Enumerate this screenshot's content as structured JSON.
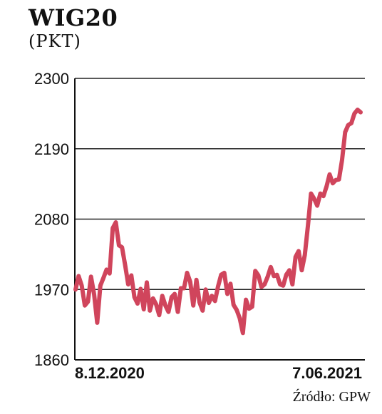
{
  "chart_data": {
    "type": "line",
    "title": "WIG20",
    "subtitle": "(PKT)",
    "source": "Źródło: GPW",
    "ylim": [
      1860,
      2300
    ],
    "yticks": [
      2300,
      2190,
      2080,
      1970,
      1860
    ],
    "xtick_labels": [
      "8.12.2020",
      "7.06.2021"
    ],
    "grid": "horizontal",
    "line_color": "#d0455c",
    "series": [
      {
        "values": [
          1970,
          1991,
          1976,
          1945,
          1951,
          1990,
          1962,
          1918,
          1976,
          1988,
          2001,
          1995,
          2066,
          2075,
          2039,
          2036,
          2008,
          1978,
          1992,
          1958,
          1948,
          1971,
          1939,
          1981,
          1937,
          1956,
          1947,
          1930,
          1960,
          1945,
          1935,
          1958,
          1963,
          1935,
          1972,
          1972,
          1996,
          1982,
          1945,
          1985,
          1950,
          1937,
          1970,
          1949,
          1960,
          1952,
          1975,
          1993,
          1996,
          1963,
          1979,
          1946,
          1938,
          1925,
          1902,
          1954,
          1940,
          1943,
          1999,
          1992,
          1974,
          1978,
          1990,
          2005,
          1991,
          1993,
          1978,
          1976,
          1993,
          2000,
          1978,
          2021,
          2030,
          2000,
          2024,
          2070,
          2120,
          2112,
          2101,
          2120,
          2116,
          2131,
          2150,
          2136,
          2141,
          2142,
          2172,
          2216,
          2227,
          2230,
          2245,
          2251,
          2247
        ]
      }
    ]
  }
}
